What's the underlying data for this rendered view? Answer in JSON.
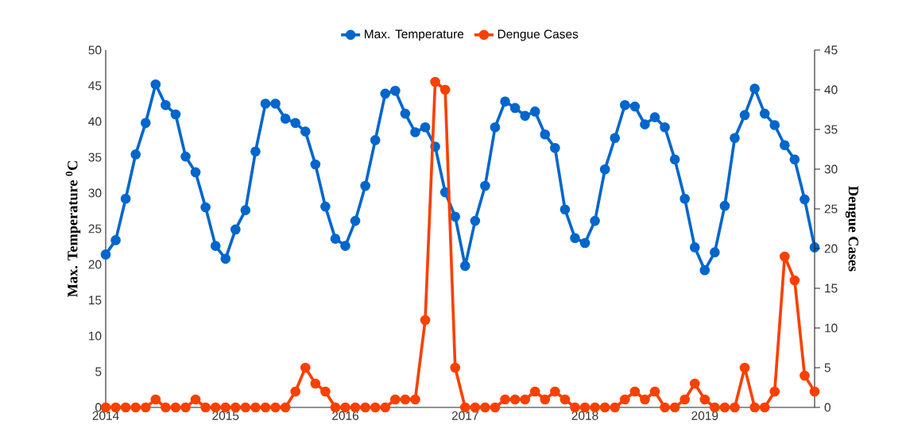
{
  "chart_data": {
    "type": "line",
    "xlabel": null,
    "ylabel": "Max. Temperature $^{0}$C",
    "y2label": "Dengue Cases",
    "legend": "top",
    "marker": "circle",
    "line_style": "solid",
    "grid": false,
    "categories": [
      "2014",
      null,
      null,
      null,
      null,
      null,
      null,
      null,
      null,
      null,
      null,
      null,
      "2015",
      null,
      null,
      null,
      null,
      null,
      null,
      null,
      null,
      null,
      null,
      null,
      "2016",
      null,
      null,
      null,
      null,
      null,
      null,
      null,
      null,
      null,
      null,
      null,
      "2017",
      null,
      null,
      null,
      null,
      null,
      null,
      null,
      null,
      null,
      null,
      null,
      "2018",
      null,
      null,
      null,
      null,
      null,
      null,
      null,
      null,
      null,
      null,
      null,
      "2019",
      null,
      null,
      null,
      null,
      null,
      null,
      null,
      null,
      null,
      null,
      null
    ],
    "ylim": [
      0,
      50
    ],
    "yticks": [
      0,
      5,
      10,
      15,
      20,
      25,
      30,
      35,
      40,
      45,
      50
    ],
    "y2lim": [
      0,
      45
    ],
    "y2ticks": [
      0,
      5,
      10,
      15,
      20,
      25,
      30,
      35,
      40,
      45
    ],
    "series": [
      {
        "name": "Max. Temperature",
        "color": "#0066cc",
        "values": [
          21.4,
          23.4,
          29.2,
          35.4,
          39.8,
          45.2,
          42.3,
          41,
          35.1,
          32.9,
          28,
          22.6,
          20.8,
          24.9,
          27.6,
          35.8,
          42.5,
          42.5,
          40.4,
          39.8,
          38.6,
          34,
          28.1,
          23.6,
          22.6,
          26.1,
          31,
          37.4,
          43.9,
          44.3,
          41.1,
          38.5,
          39.2,
          36.5,
          30.1,
          26.7,
          19.8,
          26.1,
          31,
          39.2,
          42.8,
          41.9,
          40.8,
          41.4,
          38.2,
          36.3,
          27.7,
          23.7,
          23,
          26.1,
          33.3,
          37.7,
          42.3,
          42.1,
          39.6,
          40.6,
          39.2,
          34.7,
          29.2,
          22.4,
          19.2,
          21.7,
          28.2,
          37.7,
          40.9,
          44.6,
          41.1,
          39.5,
          36.7,
          34.7,
          29.1,
          22.4
        ]
      },
      {
        "name": "Dengue Cases",
        "color": "#f94000",
        "axis": "y2",
        "values": [
          0,
          0,
          0,
          0,
          0,
          1,
          0,
          0,
          0,
          1,
          0,
          0,
          0,
          0,
          0,
          0,
          0,
          0,
          0,
          2,
          5,
          3,
          2,
          0,
          0,
          0,
          0,
          0,
          0,
          1,
          1,
          1,
          11,
          41,
          40,
          5,
          0,
          0,
          0,
          0,
          1,
          1,
          1,
          2,
          1,
          2,
          1,
          0,
          0,
          0,
          0,
          0,
          1,
          2,
          1,
          2,
          0,
          0,
          1,
          3,
          1,
          0,
          0,
          0,
          5,
          0,
          0,
          2,
          19,
          16,
          4,
          2
        ]
      }
    ]
  }
}
